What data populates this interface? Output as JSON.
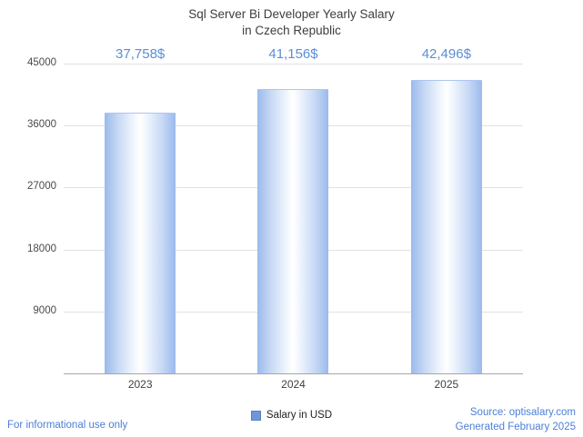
{
  "title": {
    "line1": "Sql Server Bi Developer Yearly Salary",
    "line2": "in Czech Republic"
  },
  "chart_data": {
    "type": "bar",
    "categories": [
      "2023",
      "2024",
      "2025"
    ],
    "values": [
      37758,
      41156,
      42496
    ],
    "value_labels": [
      "37,758$",
      "41,156$",
      "42,496$"
    ],
    "title": "Sql Server Bi Developer Yearly Salary in Czech Republic",
    "xlabel": "",
    "ylabel": "",
    "ylim": [
      0,
      45000
    ],
    "yticks": [
      45000,
      36000,
      27000,
      18000,
      9000
    ],
    "grid": true,
    "legend": [
      "Salary in USD"
    ],
    "legend_position": "bottom"
  },
  "legend": {
    "label": "Salary in USD"
  },
  "footer": {
    "left": "For informational use only",
    "source": "Source: optisalary.com",
    "generated": "Generated February 2025"
  },
  "colors": {
    "value_label_blue": "#5b8dd6",
    "footer_blue": "#4c7fd6",
    "bar_edge": "#9bbaec",
    "bar_center": "#ffffff",
    "gridline": "#e2e2e2",
    "axis": "#a6a6a6",
    "legend_swatch": "#6e97da"
  }
}
